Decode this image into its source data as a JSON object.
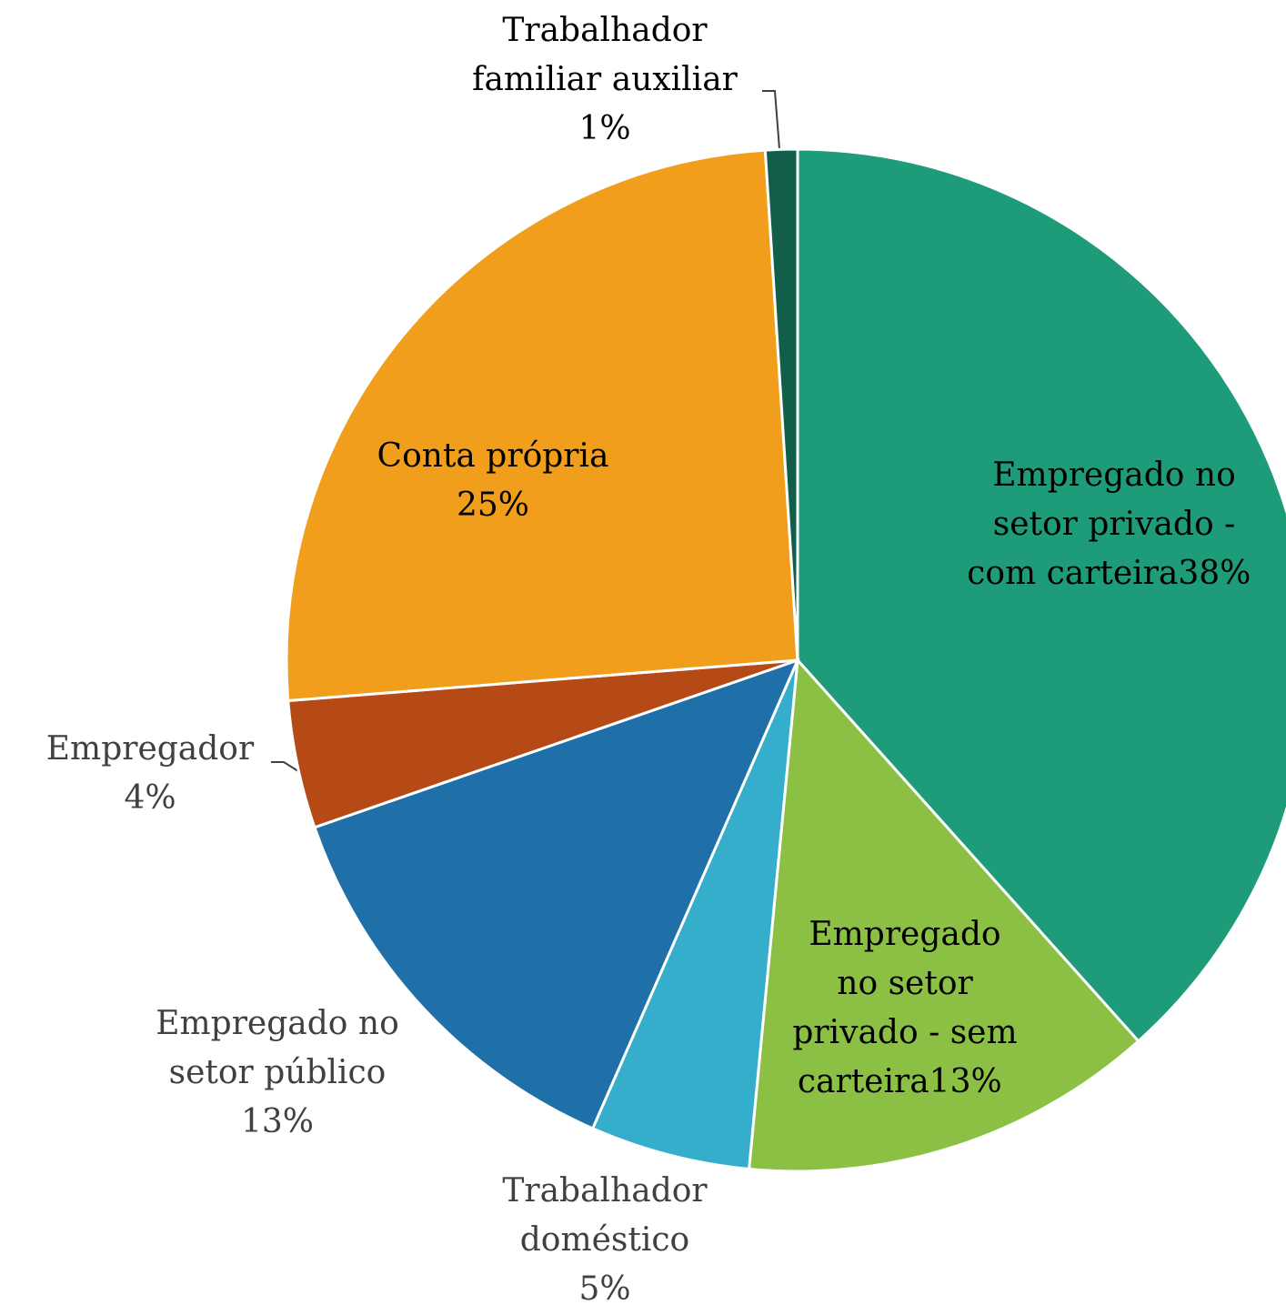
{
  "chart_data": {
    "type": "pie",
    "categories": [
      "Empregado no setor privado - com carteira",
      "Empregado no setor privado - sem carteira",
      "Trabalhador doméstico",
      "Empregado no setor público",
      "Empregador",
      "Conta própria",
      "Trabalhador familiar auxiliar"
    ],
    "values": [
      38,
      13,
      5,
      13,
      4,
      25,
      1
    ],
    "value_labels": [
      "38%",
      "13%",
      "5%",
      "13%",
      "4%",
      "25%",
      "1%"
    ],
    "colors": [
      "#1e9b78",
      "#8bc045",
      "#35aecb",
      "#1f70a8",
      "#b54a17",
      "#f09e1c",
      "#135e4b"
    ]
  }
}
